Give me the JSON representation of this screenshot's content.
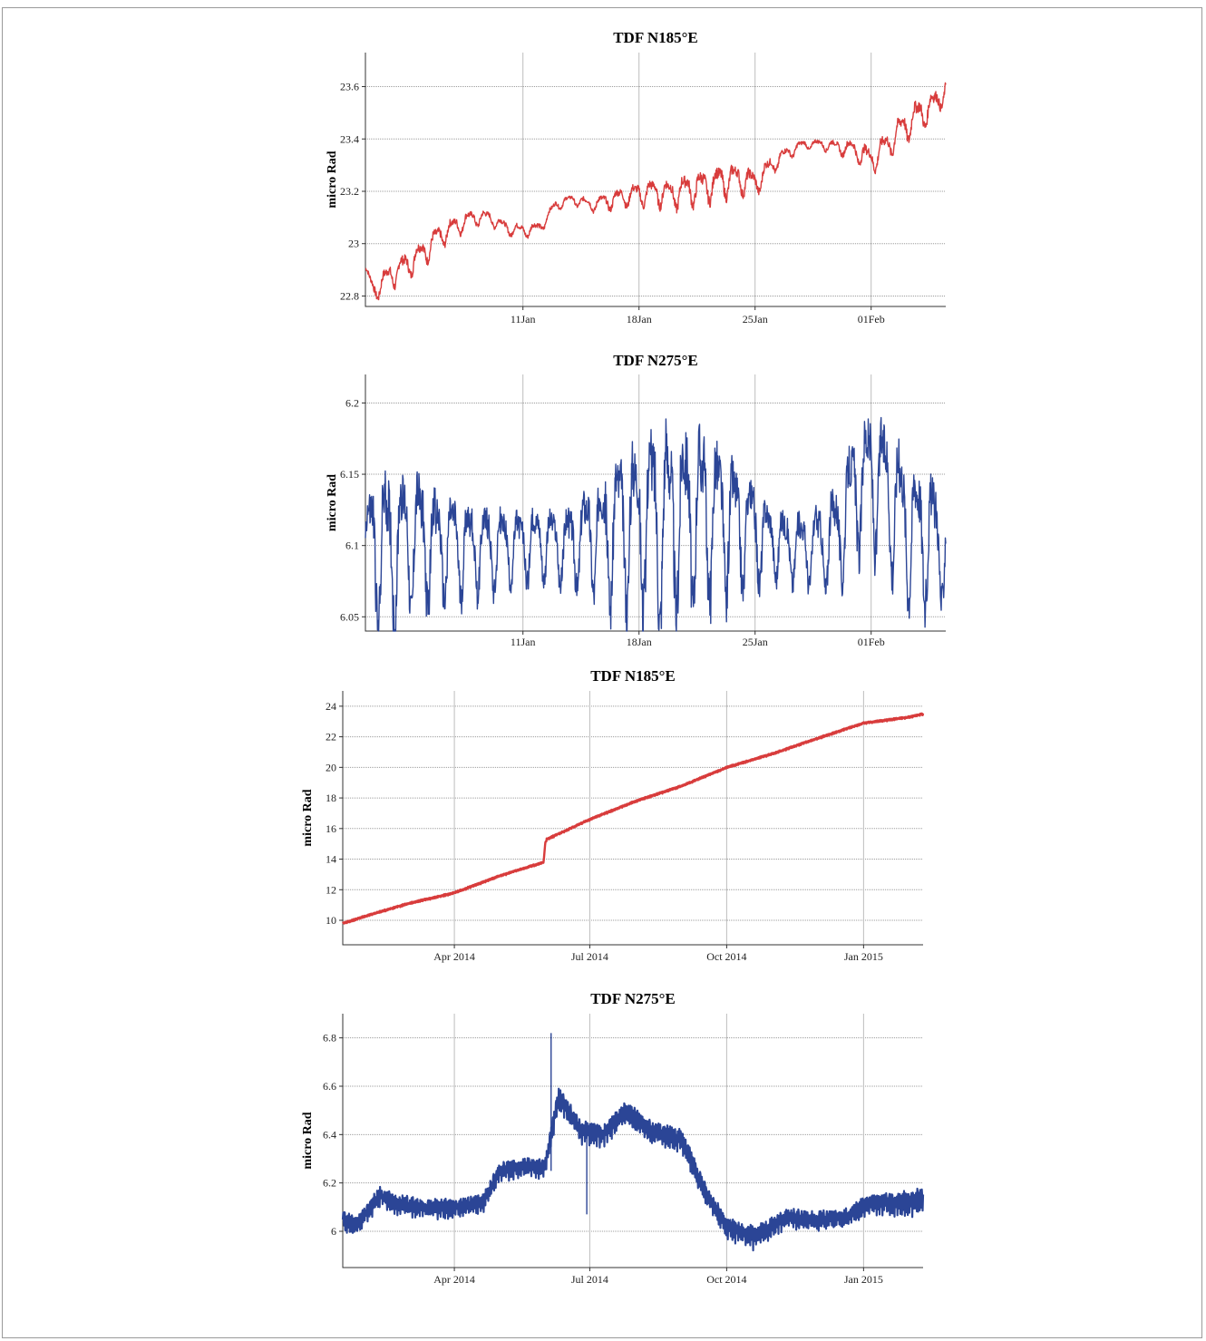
{
  "chart_data": [
    {
      "type": "line",
      "title": "TDF N185°E",
      "ylabel": "micro Rad",
      "xlabel": "",
      "x_unit": "date",
      "xlim": [
        "2015-01-01T12:00",
        "2015-02-05T12:00"
      ],
      "ylim": [
        22.76,
        23.73
      ],
      "yticks": [
        22.8,
        23,
        23.2,
        23.4,
        23.6
      ],
      "ytick_labels": [
        "22.8",
        "23",
        "23.2",
        "23.4",
        "23.6"
      ],
      "xticks": [
        "2015-01-11",
        "2015-01-18",
        "2015-01-25",
        "2015-02-01"
      ],
      "xtick_labels": [
        "11Jan",
        "18Jan",
        "25Jan",
        "01Feb"
      ],
      "grid": true,
      "color": "#d83c3c",
      "series": [
        {
          "x": [
            "2015-01-01T12:00",
            "2015-01-02",
            "2015-01-03",
            "2015-01-04",
            "2015-01-05",
            "2015-01-06",
            "2015-01-07",
            "2015-01-08",
            "2015-01-09",
            "2015-01-10",
            "2015-01-11",
            "2015-01-12",
            "2015-01-13",
            "2015-01-14",
            "2015-01-15",
            "2015-01-16",
            "2015-01-17",
            "2015-01-18",
            "2015-01-19",
            "2015-01-20",
            "2015-01-21",
            "2015-01-22",
            "2015-01-23",
            "2015-01-24",
            "2015-01-25",
            "2015-01-26",
            "2015-01-27",
            "2015-01-28",
            "2015-01-29",
            "2015-01-30",
            "2015-01-31",
            "2015-02-01",
            "2015-02-02",
            "2015-02-03",
            "2015-02-04",
            "2015-02-05",
            "2015-02-05T12:00"
          ],
          "y": [
            22.9,
            22.82,
            22.88,
            22.92,
            22.97,
            23.03,
            23.07,
            23.1,
            23.1,
            23.06,
            23.05,
            23.06,
            23.15,
            23.17,
            23.15,
            23.16,
            23.18,
            23.19,
            23.2,
            23.19,
            23.21,
            23.22,
            23.24,
            23.25,
            23.23,
            23.3,
            23.35,
            23.38,
            23.38,
            23.37,
            23.36,
            23.32,
            23.38,
            23.45,
            23.5,
            23.54,
            23.6
          ],
          "amplitude": [
            0.015,
            0.03,
            0.04,
            0.04,
            0.04,
            0.035,
            0.03,
            0.025,
            0.02,
            0.02,
            0.02,
            0.02,
            0.015,
            0.015,
            0.02,
            0.025,
            0.03,
            0.035,
            0.04,
            0.045,
            0.05,
            0.05,
            0.05,
            0.045,
            0.04,
            0.03,
            0.02,
            0.015,
            0.015,
            0.02,
            0.03,
            0.04,
            0.04,
            0.05,
            0.05,
            0.045,
            0.03
          ]
        }
      ]
    },
    {
      "type": "line",
      "title": "TDF N275°E",
      "ylabel": "micro Rad",
      "xlabel": "",
      "x_unit": "date",
      "xlim": [
        "2015-01-01T12:00",
        "2015-02-05T12:00"
      ],
      "ylim": [
        6.04,
        6.22
      ],
      "yticks": [
        6.05,
        6.1,
        6.15,
        6.2
      ],
      "ytick_labels": [
        "6.05",
        "6.1",
        "6.15",
        "6.2"
      ],
      "xticks": [
        "2015-01-11",
        "2015-01-18",
        "2015-01-25",
        "2015-02-01"
      ],
      "xtick_labels": [
        "11Jan",
        "18Jan",
        "25Jan",
        "01Feb"
      ],
      "grid": true,
      "color": "#2b4596",
      "series": [
        {
          "x": [
            "2015-01-01T12:00",
            "2015-01-02",
            "2015-01-03",
            "2015-01-04",
            "2015-01-05",
            "2015-01-06",
            "2015-01-07",
            "2015-01-08",
            "2015-01-09",
            "2015-01-10",
            "2015-01-11",
            "2015-01-12",
            "2015-01-13",
            "2015-01-14",
            "2015-01-15",
            "2015-01-16",
            "2015-01-17",
            "2015-01-18",
            "2015-01-19",
            "2015-01-20",
            "2015-01-21",
            "2015-01-22",
            "2015-01-23",
            "2015-01-24",
            "2015-01-25",
            "2015-01-26",
            "2015-01-27",
            "2015-01-28",
            "2015-01-29",
            "2015-01-30",
            "2015-01-31",
            "2015-02-01",
            "2015-02-02",
            "2015-02-03",
            "2015-02-04",
            "2015-02-05",
            "2015-02-05T12:00"
          ],
          "y": [
            6.1,
            6.1,
            6.1,
            6.105,
            6.105,
            6.1,
            6.1,
            6.1,
            6.1,
            6.1,
            6.1,
            6.105,
            6.1,
            6.1,
            6.11,
            6.11,
            6.115,
            6.12,
            6.12,
            6.12,
            6.125,
            6.125,
            6.12,
            6.115,
            6.11,
            6.105,
            6.1,
            6.1,
            6.1,
            6.11,
            6.14,
            6.15,
            6.14,
            6.12,
            6.11,
            6.105,
            6.1
          ],
          "amplitude": [
            0.025,
            0.045,
            0.045,
            0.04,
            0.04,
            0.03,
            0.03,
            0.025,
            0.025,
            0.02,
            0.02,
            0.02,
            0.02,
            0.025,
            0.03,
            0.04,
            0.045,
            0.05,
            0.055,
            0.055,
            0.055,
            0.05,
            0.045,
            0.035,
            0.03,
            0.02,
            0.02,
            0.02,
            0.025,
            0.03,
            0.035,
            0.04,
            0.04,
            0.04,
            0.04,
            0.035,
            0.03
          ]
        }
      ]
    },
    {
      "type": "line",
      "title": "TDF N185°E",
      "ylabel": "micro Rad",
      "xlabel": "",
      "x_unit": "date",
      "xlim": [
        "2014-01-16",
        "2015-02-10"
      ],
      "ylim": [
        8.4,
        25.0
      ],
      "yticks": [
        10,
        12,
        14,
        16,
        18,
        20,
        22,
        24
      ],
      "ytick_labels": [
        "10",
        "12",
        "14",
        "16",
        "18",
        "20",
        "22",
        "24"
      ],
      "xticks": [
        "2014-04-01",
        "2014-07-01",
        "2014-10-01",
        "2015-01-01"
      ],
      "xtick_labels": [
        "Apr 2014",
        "Jul 2014",
        "Oct 2014",
        "Jan 2015"
      ],
      "grid": true,
      "color": "#d83c3c",
      "series": [
        {
          "x": [
            "2014-01-16",
            "2014-02-01",
            "2014-03-01",
            "2014-04-01",
            "2014-05-01",
            "2014-05-31",
            "2014-06-01",
            "2014-06-02",
            "2014-07-01",
            "2014-08-01",
            "2014-09-01",
            "2014-10-01",
            "2014-11-01",
            "2014-12-01",
            "2015-01-01",
            "2015-02-01",
            "2015-02-10"
          ],
          "y": [
            9.8,
            10.3,
            11.1,
            11.8,
            12.9,
            13.8,
            15.0,
            15.3,
            16.6,
            17.8,
            18.8,
            20.0,
            20.9,
            21.9,
            22.9,
            23.3,
            23.5
          ],
          "amplitude": [
            0.05,
            0.05,
            0.05,
            0.05,
            0.05,
            0.05,
            0.05,
            0.05,
            0.05,
            0.05,
            0.05,
            0.05,
            0.05,
            0.05,
            0.05,
            0.05,
            0.05
          ]
        }
      ]
    },
    {
      "type": "line",
      "title": "TDF N275°E",
      "ylabel": "micro Rad",
      "xlabel": "",
      "x_unit": "date",
      "xlim": [
        "2014-01-16",
        "2015-02-10"
      ],
      "ylim": [
        5.85,
        6.9
      ],
      "yticks": [
        6,
        6.2,
        6.4,
        6.6,
        6.8
      ],
      "ytick_labels": [
        "6",
        "6.2",
        "6.4",
        "6.6",
        "6.8"
      ],
      "xticks": [
        "2014-04-01",
        "2014-07-01",
        "2014-10-01",
        "2015-01-01"
      ],
      "xtick_labels": [
        "Apr 2014",
        "Jul 2014",
        "Oct 2014",
        "Jan 2015"
      ],
      "grid": true,
      "color": "#2b4596",
      "series": [
        {
          "x": [
            "2014-01-16",
            "2014-01-25",
            "2014-02-10",
            "2014-02-20",
            "2014-03-10",
            "2014-04-01",
            "2014-04-20",
            "2014-05-01",
            "2014-05-20",
            "2014-06-01",
            "2014-06-10",
            "2014-06-25",
            "2014-07-10",
            "2014-07-25",
            "2014-08-10",
            "2014-09-01",
            "2014-09-15",
            "2014-10-01",
            "2014-10-20",
            "2014-11-10",
            "2014-12-01",
            "2014-12-20",
            "2015-01-05",
            "2015-01-20",
            "2015-02-10"
          ],
          "y": [
            6.05,
            6.03,
            6.15,
            6.12,
            6.1,
            6.1,
            6.12,
            6.25,
            6.27,
            6.27,
            6.56,
            6.42,
            6.4,
            6.5,
            6.42,
            6.38,
            6.18,
            6.02,
            5.98,
            6.06,
            6.05,
            6.06,
            6.12,
            6.12,
            6.13
          ],
          "amplitude": [
            0.03,
            0.03,
            0.03,
            0.03,
            0.03,
            0.03,
            0.03,
            0.03,
            0.03,
            0.03,
            0.035,
            0.035,
            0.035,
            0.035,
            0.035,
            0.035,
            0.035,
            0.035,
            0.035,
            0.03,
            0.03,
            0.03,
            0.035,
            0.035,
            0.04
          ]
        }
      ],
      "spikes": [
        {
          "x": "2014-06-05",
          "from": 6.25,
          "to": 6.82
        },
        {
          "x": "2014-06-29",
          "from": 6.4,
          "to": 6.07
        }
      ]
    }
  ]
}
